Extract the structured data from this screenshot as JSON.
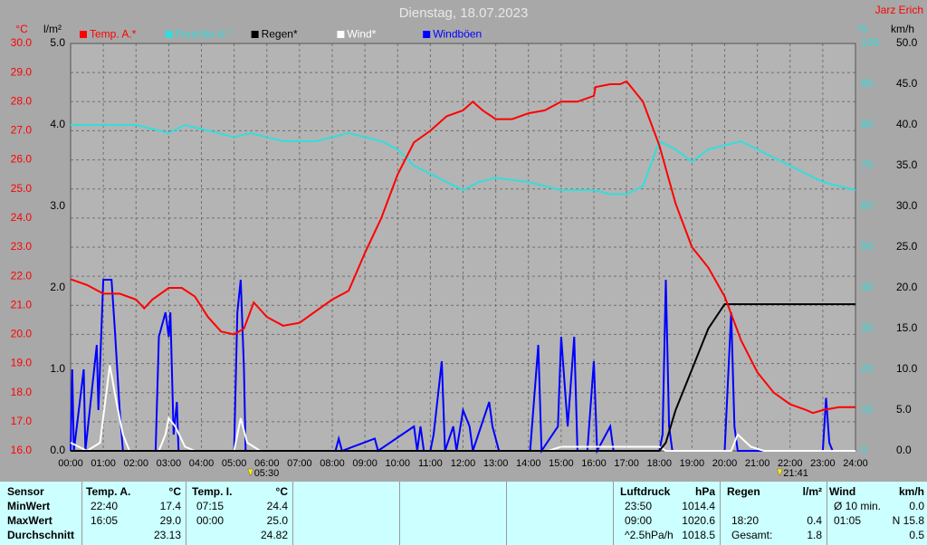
{
  "chart_data": {
    "type": "line",
    "title": "Dienstag, 18.07.2023",
    "author": "Jarz Erich",
    "ylabel": "°C",
    "y2label": "l/m²",
    "y3label": "%",
    "y4label": "km/h",
    "xlim": [
      0,
      24
    ],
    "xticks": [
      {
        "value": 0,
        "label": "00:00"
      },
      {
        "value": 1,
        "label": "01:00"
      },
      {
        "value": 2,
        "label": "02:00"
      },
      {
        "value": 3,
        "label": "03:00"
      },
      {
        "value": 4,
        "label": "04:00"
      },
      {
        "value": 5,
        "label": "05:00"
      },
      {
        "value": 6,
        "label": "06:00"
      },
      {
        "value": 7,
        "label": "07:00"
      },
      {
        "value": 8,
        "label": "08:00"
      },
      {
        "value": 9,
        "label": "09:00"
      },
      {
        "value": 10,
        "label": "10:00"
      },
      {
        "value": 11,
        "label": "11:00"
      },
      {
        "value": 12,
        "label": "12:00"
      },
      {
        "value": 13,
        "label": "13:00"
      },
      {
        "value": 14,
        "label": "14:00"
      },
      {
        "value": 15,
        "label": "15:00"
      },
      {
        "value": 16,
        "label": "16:00"
      },
      {
        "value": 17,
        "label": "17:00"
      },
      {
        "value": 18,
        "label": "18:00"
      },
      {
        "value": 19,
        "label": "19:00"
      },
      {
        "value": 20,
        "label": "20:00"
      },
      {
        "value": 21,
        "label": "21:00"
      },
      {
        "value": 22,
        "label": "22:00"
      },
      {
        "value": 23,
        "label": "23:00"
      },
      {
        "value": 24,
        "label": "24:00"
      }
    ],
    "ylim": [
      16,
      30
    ],
    "yticks": [
      {
        "value": 16,
        "label": "16.0"
      },
      {
        "value": 17,
        "label": "17.0"
      },
      {
        "value": 18,
        "label": "18.0"
      },
      {
        "value": 19,
        "label": "19.0"
      },
      {
        "value": 20,
        "label": "20.0"
      },
      {
        "value": 21,
        "label": "21.0"
      },
      {
        "value": 22,
        "label": "22.0"
      },
      {
        "value": 23,
        "label": "23.0"
      },
      {
        "value": 24,
        "label": "24.0"
      },
      {
        "value": 25,
        "label": "25.0"
      },
      {
        "value": 26,
        "label": "26.0"
      },
      {
        "value": 27,
        "label": "27.0"
      },
      {
        "value": 28,
        "label": "28.0"
      },
      {
        "value": 29,
        "label": "29.0"
      },
      {
        "value": 30,
        "label": "30.0"
      }
    ],
    "y2lim": [
      0,
      5
    ],
    "y2ticks": [
      {
        "value": 0,
        "label": "0.0"
      },
      {
        "value": 1,
        "label": "1.0"
      },
      {
        "value": 2,
        "label": "2.0"
      },
      {
        "value": 3,
        "label": "3.0"
      },
      {
        "value": 4,
        "label": "4.0"
      },
      {
        "value": 5,
        "label": "5.0"
      }
    ],
    "y3lim": [
      0,
      100
    ],
    "y3ticks": [
      0,
      10,
      20,
      30,
      40,
      50,
      60,
      70,
      80,
      90,
      100
    ],
    "y4lim": [
      0,
      50
    ],
    "y4ticks": [
      {
        "value": 0,
        "label": "0.0"
      },
      {
        "value": 5,
        "label": "5.0"
      },
      {
        "value": 10,
        "label": "10.0"
      },
      {
        "value": 15,
        "label": "15.0"
      },
      {
        "value": 20,
        "label": "20.0"
      },
      {
        "value": 25,
        "label": "25.0"
      },
      {
        "value": 30,
        "label": "30.0"
      },
      {
        "value": 35,
        "label": "35.0"
      },
      {
        "value": 40,
        "label": "40.0"
      },
      {
        "value": 45,
        "label": "45.0"
      },
      {
        "value": 50,
        "label": "50.0"
      }
    ],
    "grid": true,
    "annotations": [
      {
        "x": 5.5,
        "label": "05:30"
      },
      {
        "x": 21.683,
        "label": "21:41"
      }
    ],
    "series": [
      {
        "name": "Temp. A.*",
        "color": "#ff0000",
        "axis": "y",
        "x": [
          0,
          0.5,
          1,
          1.5,
          2,
          2.25,
          2.5,
          3,
          3.4,
          3.8,
          4.2,
          4.6,
          5,
          5.3,
          5.6,
          6,
          6.5,
          7,
          7.5,
          8,
          8.5,
          9,
          9.5,
          10,
          10.5,
          11,
          11.5,
          12,
          12.3,
          12.6,
          13,
          13.5,
          14,
          14.5,
          15,
          15.5,
          16,
          16.05,
          16.5,
          16.8,
          17,
          17.5,
          18,
          18.5,
          19,
          19.5,
          20,
          20.5,
          21,
          21.5,
          22,
          22.5,
          22.7,
          23,
          23.5,
          24
        ],
        "values": [
          21.9,
          21.7,
          21.4,
          21.4,
          21.2,
          20.9,
          21.2,
          21.6,
          21.6,
          21.3,
          20.6,
          20.1,
          20.0,
          20.2,
          21.1,
          20.6,
          20.3,
          20.4,
          20.8,
          21.2,
          21.5,
          22.8,
          24.0,
          25.5,
          26.6,
          27.0,
          27.5,
          27.7,
          28.0,
          27.7,
          27.4,
          27.4,
          27.6,
          27.7,
          28.0,
          28.0,
          28.2,
          28.5,
          28.6,
          28.6,
          28.7,
          28.0,
          26.5,
          24.5,
          23.0,
          22.3,
          21.3,
          19.8,
          18.7,
          18.0,
          17.6,
          17.4,
          17.3,
          17.4,
          17.5,
          17.5
        ]
      },
      {
        "name": "Feuchte A.*",
        "color": "#33dddd",
        "axis": "y3",
        "x": [
          0,
          1,
          2,
          3,
          3.5,
          4,
          5,
          5.5,
          6.5,
          7.5,
          8.5,
          9.5,
          10,
          10.5,
          11,
          11.5,
          12,
          12.5,
          13,
          14,
          15,
          16,
          16.5,
          17,
          17.5,
          18,
          18.5,
          19,
          19.5,
          20.5,
          21,
          22,
          23,
          24
        ],
        "values": [
          80,
          80,
          80,
          78,
          80,
          79,
          77,
          78,
          76,
          76,
          78,
          76,
          74,
          70,
          68,
          66,
          64,
          66,
          67,
          66,
          64,
          64,
          63,
          63,
          65,
          76,
          74,
          71,
          74,
          76,
          74,
          70,
          66,
          64
        ]
      },
      {
        "name": "Regen*",
        "color": "#000000",
        "axis": "y2",
        "x": [
          0,
          18,
          18.2,
          18.5,
          19,
          19.5,
          20,
          20.5,
          24
        ],
        "values": [
          0,
          0,
          0.1,
          0.5,
          1.0,
          1.5,
          1.8,
          1.8,
          1.8
        ]
      },
      {
        "name": "Wind*",
        "color": "#ffffff",
        "axis": "y4",
        "x": [
          0,
          0.5,
          0.9,
          1.2,
          1.4,
          1.6,
          1.8,
          2.7,
          2.9,
          3,
          3.2,
          3.5,
          3.8,
          5,
          5.2,
          5.4,
          5.8,
          14.6,
          15,
          18,
          18.2,
          20.2,
          20.4,
          20.8,
          21.2,
          24
        ],
        "values": [
          1,
          0,
          1,
          10.5,
          6,
          2,
          0,
          0,
          2,
          4,
          3,
          0.5,
          0,
          0,
          4,
          1,
          0,
          0,
          0.5,
          0.5,
          0,
          0,
          2,
          0.5,
          0,
          0
        ]
      },
      {
        "name": "Windböen",
        "color": "#0000ff",
        "axis": "y4",
        "x": [
          0,
          0.05,
          0.1,
          0.4,
          0.45,
          0.8,
          0.85,
          1,
          1.25,
          1.35,
          1.5,
          1.6,
          2.6,
          2.7,
          2.9,
          3,
          3.05,
          3.15,
          3.25,
          3.3,
          5,
          5.1,
          5.2,
          5.3,
          5.35,
          8.1,
          8.2,
          8.3,
          9.3,
          9.4,
          10.5,
          10.6,
          10.7,
          10.8,
          11,
          11.1,
          11.35,
          11.45,
          11.7,
          11.8,
          12,
          12.2,
          12.3,
          12.8,
          12.9,
          13.1,
          14.05,
          14.3,
          14.4,
          14.9,
          15,
          15.2,
          15.4,
          15.5,
          15.8,
          16,
          16.1,
          16.5,
          16.6,
          18,
          18.1,
          18.2,
          18.3,
          18.4,
          20,
          20.2,
          20.3,
          20.4,
          23,
          23.1,
          23.2,
          23.3,
          24
        ],
        "values": [
          0,
          10,
          0,
          10,
          0,
          13,
          5,
          21,
          21,
          15,
          5,
          0,
          0,
          14,
          17,
          14,
          17,
          2,
          6,
          0,
          0,
          17,
          21,
          10,
          0,
          0,
          1.5,
          0,
          1.5,
          0,
          3,
          0,
          3,
          0,
          0,
          2,
          11,
          0,
          3,
          0,
          5,
          3,
          0,
          6,
          3,
          0,
          0,
          13,
          0,
          3,
          14,
          3,
          14,
          0,
          0,
          11,
          0,
          3,
          0,
          0,
          2,
          21,
          3,
          0,
          0,
          17,
          3,
          0,
          0,
          6.5,
          1,
          0,
          0
        ]
      }
    ]
  },
  "table": {
    "header": {
      "sensor": "Sensor",
      "temp_a": {
        "left": "Temp. A.",
        "right": "°C"
      },
      "temp_i": {
        "left": "Temp. I.",
        "right": "°C"
      },
      "luftdruck": {
        "left": "Luftdruck",
        "right": "hPa"
      },
      "regen": {
        "left": "Regen",
        "right": "l/m²"
      },
      "wind": {
        "left": "Wind",
        "right": "km/h"
      }
    },
    "rows": [
      {
        "sensor": "MinWert",
        "temp_a": {
          "left": "22:40",
          "right": "17.4"
        },
        "temp_i": {
          "left": "07:15",
          "right": "24.4"
        },
        "luftdruck": {
          "left": "23:50",
          "right": "1014.4"
        },
        "wind": {
          "left": "Ø 10 min.",
          "right": "0.0"
        }
      },
      {
        "sensor": "MaxWert",
        "temp_a": {
          "left": "16:05",
          "right": "29.0"
        },
        "temp_i": {
          "left": "00:00",
          "right": "25.0"
        },
        "luftdruck": {
          "left": "09:00",
          "right": "1020.6"
        },
        "regen": {
          "left": "18:20",
          "right": "0.4"
        },
        "wind": {
          "left": "01:05",
          "right": "N 15.8"
        }
      },
      {
        "sensor": "Durchschnitt",
        "temp_a": {
          "right": "23.13"
        },
        "temp_i": {
          "right": "24.82"
        },
        "luftdruck": {
          "left": "^2.5hPa/h",
          "right": "1018.5"
        },
        "regen": {
          "left": "Gesamt:",
          "right": "1.8"
        },
        "wind": {
          "right": "0.5"
        }
      }
    ]
  }
}
